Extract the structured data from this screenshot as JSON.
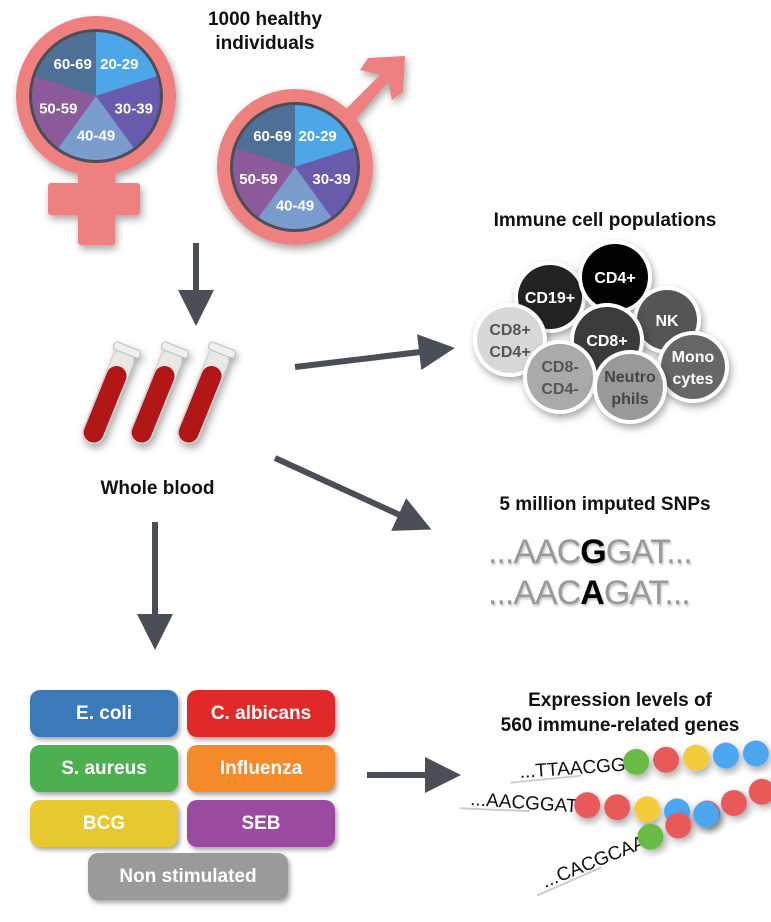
{
  "title": "1000 healthy individuals",
  "title_line1": "1000 healthy",
  "title_line2": "individuals",
  "age_groups": [
    "20-29",
    "30-39",
    "40-49",
    "50-59",
    "60-69"
  ],
  "age_colors": [
    "#4da6e8",
    "#6a5aad",
    "#7a9ccc",
    "#8a5a9a",
    "#4f7096"
  ],
  "symbol_color": "#ee8080",
  "arrow_color": "#4a4e57",
  "whole_blood": "Whole blood",
  "immune": {
    "title": "Immune cell populations",
    "cells": [
      {
        "l1": "CD19+",
        "l2": "",
        "fill": "#222222",
        "text": "#ffffff"
      },
      {
        "l1": "CD4+",
        "l2": "",
        "fill": "#000000",
        "text": "#ffffff"
      },
      {
        "l1": "NK",
        "l2": "",
        "fill": "#555555",
        "text": "#ffffff"
      },
      {
        "l1": "CD8+",
        "l2": "CD4+",
        "fill": "#d8d8d8",
        "text": "#555555"
      },
      {
        "l1": "CD8+",
        "l2": "",
        "fill": "#3a3a3a",
        "text": "#ffffff"
      },
      {
        "l1": "Mono",
        "l2": "cytes",
        "fill": "#666666",
        "text": "#ffffff"
      },
      {
        "l1": "CD8-",
        "l2": "CD4-",
        "fill": "#aaaaaa",
        "text": "#555555"
      },
      {
        "l1": "Neutro",
        "l2": "phils",
        "fill": "#999999",
        "text": "#444444"
      }
    ]
  },
  "snps": {
    "title": "5 million imputed SNPs",
    "seq1": {
      "pre": "...AAC",
      "allele": "G",
      "post": "GAT..."
    },
    "seq2": {
      "pre": "...AAC",
      "allele": "A",
      "post": "GAT..."
    }
  },
  "stimuli": [
    {
      "label": "E. coli",
      "color": "#3a7ab8"
    },
    {
      "label": "C. albicans",
      "color": "#e02a2a"
    },
    {
      "label": "S. aureus",
      "color": "#4caf50"
    },
    {
      "label": "Influenza",
      "color": "#f58a2a"
    },
    {
      "label": "BCG",
      "color": "#e8c830"
    },
    {
      "label": "SEB",
      "color": "#9a4aa0"
    },
    {
      "label": "Non stimulated",
      "color": "#9a9a9a"
    }
  ],
  "expression": {
    "title_line1": "Expression levels of",
    "title_line2": "560 immune-related genes",
    "rows": [
      {
        "seq": "...TTAACGG",
        "dots": [
          "#6bbb45",
          "#e85a5a",
          "#f2cc3a",
          "#4da6f0",
          "#4da6f0"
        ]
      },
      {
        "seq": "...AACGGAT",
        "dots": [
          "#e85a5a",
          "#e85a5a",
          "#f2cc3a",
          "#4da6f0",
          "#e85a5a"
        ]
      },
      {
        "seq": "...CACGCAA",
        "dots": [
          "#6bbb45",
          "#e85a5a",
          "#4da6f0",
          "#e85a5a",
          "#e85a5a"
        ]
      }
    ]
  }
}
